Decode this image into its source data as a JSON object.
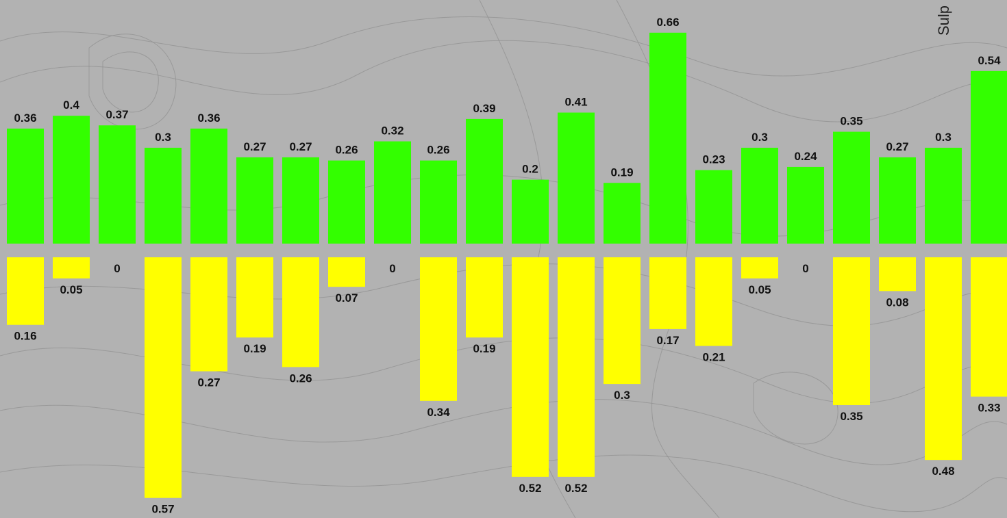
{
  "chart_data": {
    "type": "bar",
    "series": [
      {
        "color": "#33ff00",
        "direction": "up",
        "values": [
          0.36,
          0.4,
          0.37,
          0.3,
          0.36,
          0.27,
          0.27,
          0.26,
          0.32,
          0.26,
          0.39,
          0.2,
          0.41,
          0.19,
          0.66,
          0.23,
          0.3,
          0.24,
          0.35,
          0.27,
          0.3,
          0.54
        ]
      },
      {
        "color": "#ffff00",
        "direction": "down",
        "values": [
          0.16,
          0.05,
          0,
          0.57,
          0.27,
          0.19,
          0.26,
          0.07,
          0,
          0.34,
          0.19,
          0.52,
          0.52,
          0.3,
          0.17,
          0.21,
          0.05,
          0,
          0.35,
          0.08,
          0.48,
          0.33
        ]
      }
    ],
    "side_label": "Sulp",
    "grid": false,
    "legend": "none"
  },
  "colors": {
    "background": "#b2b2b2",
    "contour": "#8f8f8f"
  }
}
